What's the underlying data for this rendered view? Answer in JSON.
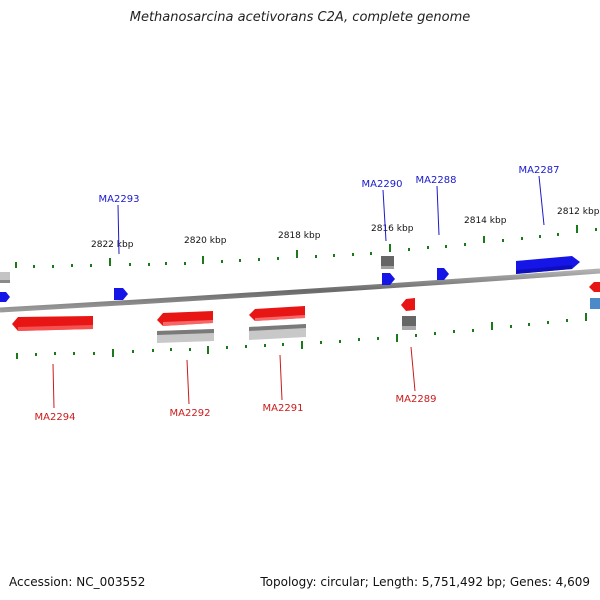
{
  "title": "Methanosarcina acetivorans C2A, complete genome",
  "footer": {
    "accession": "Accession: NC_003552",
    "summary": "Topology: circular; Length: 5,751,492 bp; Genes: 4,609"
  },
  "colors": {
    "forward_gene": "#1010e0",
    "reverse_gene": "#e01010",
    "backbone": "#808080",
    "tick": "#1a7a1a",
    "forward_label": "#1a1acc",
    "reverse_label": "#cc1a1a",
    "gray_feature": "#707070",
    "light_feature": "#c0c0c0",
    "teal_feature": "#4a8ac8"
  },
  "scale_labels": [
    "2822 kbp",
    "2820 kbp",
    "2818 kbp",
    "2816 kbp",
    "2814 kbp",
    "2812 kbp"
  ],
  "forward_genes": [
    "MA2293",
    "MA2290",
    "MA2288",
    "MA2287"
  ],
  "reverse_genes": [
    "MA2294",
    "MA2292",
    "MA2291",
    "MA2289"
  ]
}
